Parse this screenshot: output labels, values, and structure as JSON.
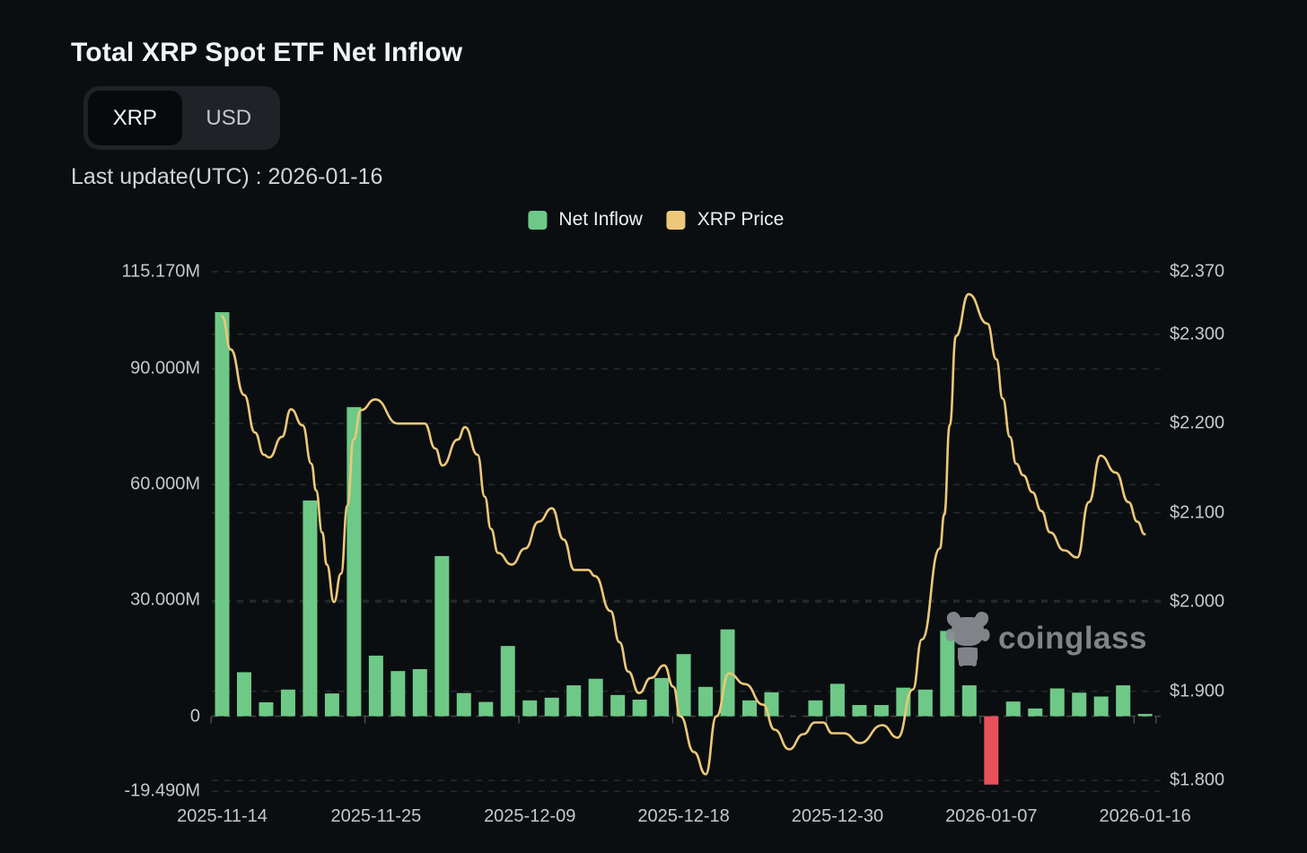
{
  "header": {
    "title": "Total XRP Spot ETF Net Inflow",
    "toggle": {
      "options": [
        "XRP",
        "USD"
      ],
      "selected": "XRP"
    },
    "last_update": "Last update(UTC) : 2026-01-16"
  },
  "legend": [
    {
      "label": "Net Inflow",
      "color": "#6ec987"
    },
    {
      "label": "XRP Price",
      "color": "#ecc878"
    }
  ],
  "watermark": {
    "icon": "coinglass-bull-icon",
    "text": "coinglass"
  },
  "chart_data": {
    "type": "bar+line",
    "title": "Total XRP Spot ETF Net Inflow",
    "grid": "dashed horizontal",
    "x_tick_labels": [
      "2025-11-14",
      "2025-11-25",
      "2025-12-09",
      "2025-12-18",
      "2025-12-30",
      "2026-01-07",
      "2026-01-16"
    ],
    "x_tick_indices": [
      0,
      7,
      14,
      21,
      28,
      35,
      42
    ],
    "bars": {
      "name": "Net Inflow",
      "unit": "M XRP",
      "positive_color": "#6ec987",
      "negative_color": "#e8505c",
      "values": [
        104.7,
        11.4,
        3.6,
        6.9,
        55.9,
        5.9,
        80.1,
        15.7,
        11.7,
        12.2,
        41.5,
        6.0,
        3.7,
        18.2,
        4.1,
        4.8,
        8.0,
        9.7,
        5.5,
        4.3,
        9.9,
        16.1,
        7.6,
        22.5,
        4.1,
        6.2,
        0.0,
        4.1,
        8.4,
        2.9,
        2.9,
        7.4,
        6.9,
        22.1,
        8.0,
        -17.72,
        3.8,
        2.0,
        7.2,
        6.1,
        5.1,
        8.0,
        0.6
      ]
    },
    "line": {
      "name": "XRP Price",
      "color": "#ecc878",
      "points": [
        [
          0,
          2.32
        ],
        [
          0.39,
          2.283
        ],
        [
          1,
          2.232
        ],
        [
          1.49,
          2.19
        ],
        [
          1.9,
          2.165
        ],
        [
          2.14,
          2.162
        ],
        [
          2.72,
          2.185
        ],
        [
          3.13,
          2.216
        ],
        [
          3.66,
          2.198
        ],
        [
          4.06,
          2.155
        ],
        [
          4.27,
          2.125
        ],
        [
          4.55,
          2.078
        ],
        [
          4.76,
          2.042
        ],
        [
          5.09,
          2.0
        ],
        [
          5.41,
          2.032
        ],
        [
          5.7,
          2.108
        ],
        [
          5.98,
          2.182
        ],
        [
          6.31,
          2.215
        ],
        [
          6.97,
          2.227
        ],
        [
          7.99,
          2.2
        ],
        [
          9.21,
          2.2
        ],
        [
          9.7,
          2.172
        ],
        [
          10.03,
          2.153
        ],
        [
          10.72,
          2.182
        ],
        [
          11.05,
          2.196
        ],
        [
          11.62,
          2.165
        ],
        [
          11.95,
          2.118
        ],
        [
          12.23,
          2.082
        ],
        [
          12.56,
          2.055
        ],
        [
          13.17,
          2.042
        ],
        [
          13.79,
          2.06
        ],
        [
          14.4,
          2.09
        ],
        [
          15.01,
          2.105
        ],
        [
          15.54,
          2.07
        ],
        [
          16.03,
          2.036
        ],
        [
          16.65,
          2.036
        ],
        [
          16.97,
          2.029
        ],
        [
          17.67,
          1.99
        ],
        [
          18.08,
          1.955
        ],
        [
          18.48,
          1.922
        ],
        [
          18.97,
          1.898
        ],
        [
          19.51,
          1.915
        ],
        [
          20.12,
          1.929
        ],
        [
          20.53,
          1.905
        ],
        [
          20.85,
          1.872
        ],
        [
          21.47,
          1.832
        ],
        [
          22,
          1.807
        ],
        [
          22.49,
          1.872
        ],
        [
          23.06,
          1.92
        ],
        [
          23.8,
          1.908
        ],
        [
          24.61,
          1.885
        ],
        [
          25.14,
          1.857
        ],
        [
          25.8,
          1.835
        ],
        [
          26.45,
          1.852
        ],
        [
          26.98,
          1.865
        ],
        [
          27.35,
          1.865
        ],
        [
          27.76,
          1.853
        ],
        [
          28.29,
          1.853
        ],
        [
          29.02,
          1.842
        ],
        [
          30.04,
          1.862
        ],
        [
          30.74,
          1.848
        ],
        [
          31.43,
          1.902
        ],
        [
          31.84,
          1.958
        ],
        [
          32.66,
          2.06
        ],
        [
          32.86,
          2.098
        ],
        [
          33.11,
          2.198
        ],
        [
          33.39,
          2.298
        ],
        [
          33.97,
          2.345
        ],
        [
          34.82,
          2.312
        ],
        [
          35.23,
          2.272
        ],
        [
          35.52,
          2.228
        ],
        [
          35.85,
          2.185
        ],
        [
          36.13,
          2.155
        ],
        [
          36.46,
          2.142
        ],
        [
          36.87,
          2.123
        ],
        [
          37.28,
          2.102
        ],
        [
          37.68,
          2.078
        ],
        [
          38.3,
          2.058
        ],
        [
          38.91,
          2.05
        ],
        [
          39.44,
          2.112
        ],
        [
          39.97,
          2.164
        ],
        [
          40.67,
          2.145
        ],
        [
          41.24,
          2.112
        ],
        [
          41.65,
          2.09
        ],
        [
          41.98,
          2.076
        ]
      ]
    },
    "left_axis": {
      "title": "Net Inflow (XRP)",
      "ticks": [
        {
          "label": "115.170M",
          "value": 115.17
        },
        {
          "label": "90.000M",
          "value": 90
        },
        {
          "label": "60.000M",
          "value": 60
        },
        {
          "label": "30.000M",
          "value": 30
        },
        {
          "label": "0",
          "value": 0
        },
        {
          "label": "-19.490M",
          "value": -19.49
        }
      ],
      "range": [
        -19.49,
        115.17
      ]
    },
    "right_axis": {
      "title": "XRP Price (USD)",
      "ticks": [
        {
          "label": "$2.370",
          "value": 2.37
        },
        {
          "label": "$2.300",
          "value": 2.3
        },
        {
          "label": "$2.200",
          "value": 2.2
        },
        {
          "label": "$2.100",
          "value": 2.1
        },
        {
          "label": "$2.000",
          "value": 2.0
        },
        {
          "label": "$1.900",
          "value": 1.9
        },
        {
          "label": "$1.800",
          "value": 1.8
        }
      ],
      "range": [
        1.8,
        2.37
      ]
    },
    "colors": {
      "background": "#0b0e11",
      "grid": "#3d4249",
      "axis_text": "#c6c8cb"
    }
  }
}
